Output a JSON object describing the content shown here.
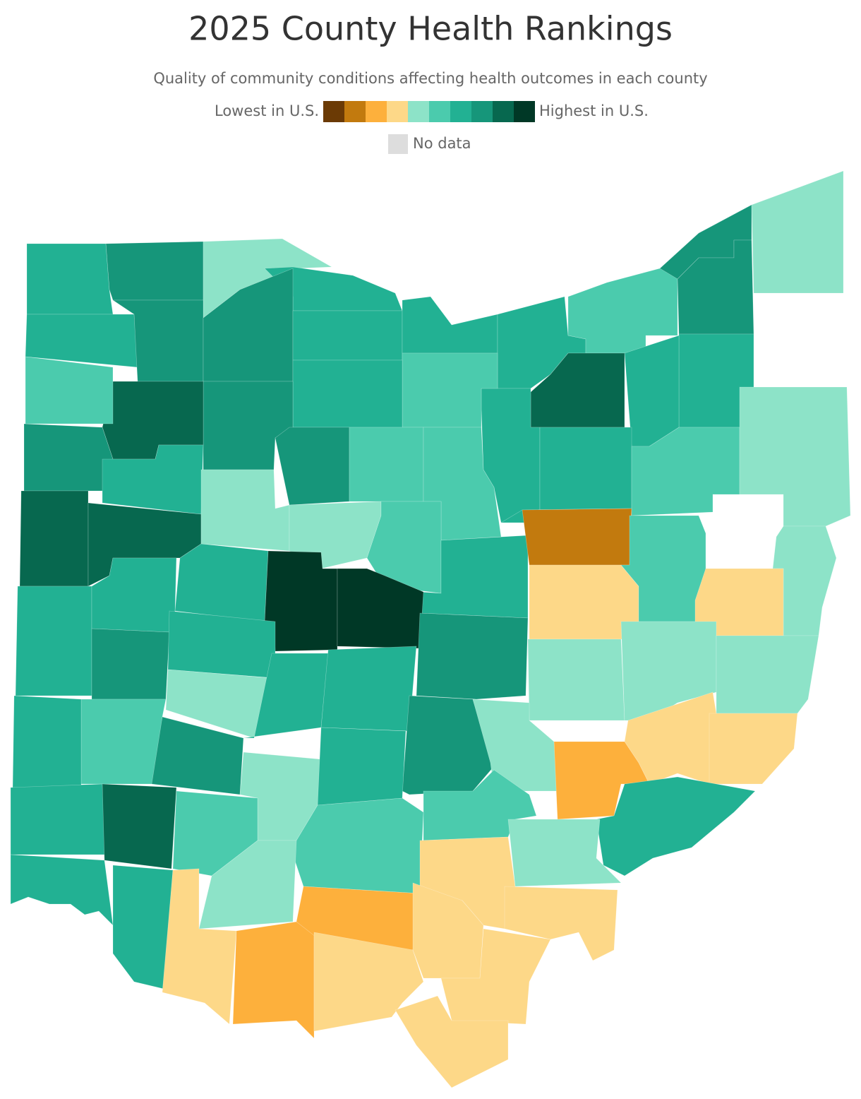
{
  "header": {
    "title": "2025 County Health Rankings",
    "subtitle": "Quality of community conditions affecting health outcomes in each county"
  },
  "legend": {
    "low_label": "Lowest in U.S.",
    "high_label": "Highest in U.S.",
    "no_data_label": "No data",
    "colors": [
      "#6b3a05",
      "#c27a0e",
      "#fdb03c",
      "#fdd888",
      "#8de3c8",
      "#4bcbad",
      "#22b193",
      "#16967a",
      "#07684f",
      "#003826"
    ],
    "no_data_color": "#dddddd"
  },
  "map": {
    "county_levels": [
      6,
      7,
      4,
      6,
      6,
      7,
      7,
      6,
      6,
      6,
      5,
      7,
      4,
      7,
      6,
      6,
      8,
      6,
      5,
      6,
      7,
      8,
      5,
      7,
      6,
      8,
      8,
      4,
      7,
      5,
      5,
      6,
      5,
      4,
      4,
      5,
      6,
      1,
      3,
      5,
      4,
      3,
      6,
      6,
      6,
      9,
      9,
      7,
      4,
      4,
      4,
      7,
      6,
      4,
      6,
      6,
      7,
      4,
      3,
      3,
      5,
      6,
      7,
      4,
      6,
      5,
      2,
      6,
      4,
      6,
      8,
      5,
      5,
      4,
      3,
      3,
      6,
      6,
      3,
      2,
      2,
      3,
      3,
      3,
      3
    ]
  }
}
